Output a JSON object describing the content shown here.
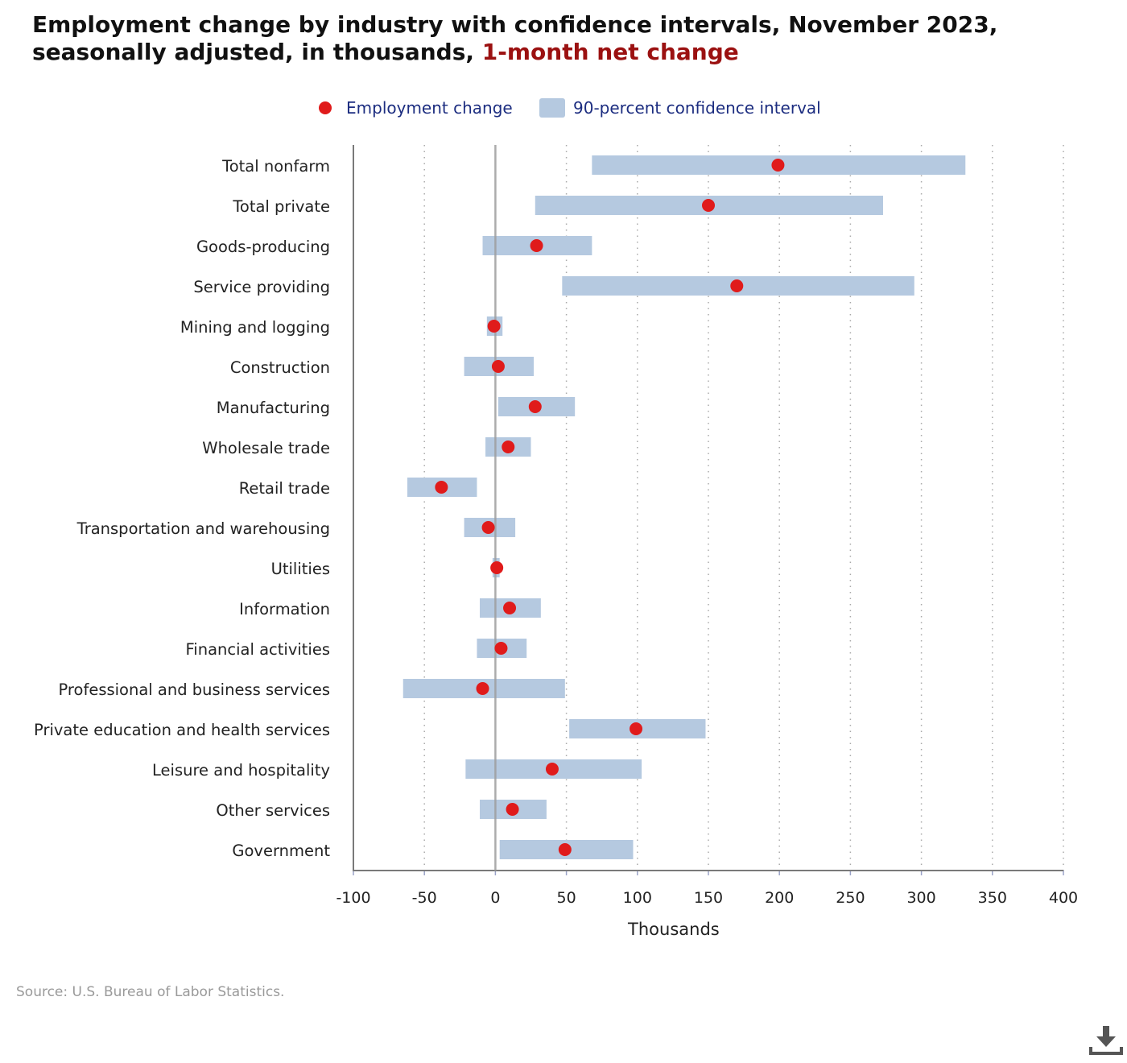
{
  "title": {
    "main": "Employment change by industry with confidence intervals, November 2023, seasonally adjusted, in thousands,",
    "highlight": "1-month net change"
  },
  "legend": {
    "point_label": "Employment change",
    "interval_label": "90-percent confidence interval"
  },
  "source": "Source: U.S. Bureau of Labor Statistics.",
  "colors": {
    "point": "#e01b1b",
    "interval": "#b5c9e0",
    "title_accent": "#9b1111",
    "legend_text": "#1c2d80"
  },
  "icons": {
    "download": "download-icon"
  },
  "chart_data": {
    "type": "dot-with-interval",
    "xlabel": "Thousands",
    "xlim": [
      -100,
      400
    ],
    "xticks": [
      -100,
      -50,
      0,
      50,
      100,
      150,
      200,
      250,
      300,
      350,
      400
    ],
    "grid": "vertical dotted",
    "categories": [
      "Total nonfarm",
      "Total private",
      "Goods-producing",
      "Service providing",
      "Mining and logging",
      "Construction",
      "Manufacturing",
      "Wholesale trade",
      "Retail trade",
      "Transportation and warehousing",
      "Utilities",
      "Information",
      "Financial activities",
      "Professional and business services",
      "Private education and health services",
      "Leisure and hospitality",
      "Other services",
      "Government"
    ],
    "series": [
      {
        "name": "Employment change",
        "values": [
          199,
          150,
          29,
          170,
          -1,
          2,
          28,
          9,
          -38,
          -5,
          1,
          10,
          4,
          -9,
          99,
          40,
          12,
          49
        ]
      },
      {
        "name": "90-percent confidence interval",
        "low": [
          68,
          28,
          -9,
          47,
          -6,
          -22,
          2,
          -7,
          -62,
          -22,
          -2,
          -11,
          -13,
          -65,
          52,
          -21,
          -11,
          3
        ],
        "high": [
          331,
          273,
          68,
          295,
          5,
          27,
          56,
          25,
          -13,
          14,
          3,
          32,
          22,
          49,
          148,
          103,
          36,
          97
        ]
      }
    ]
  }
}
